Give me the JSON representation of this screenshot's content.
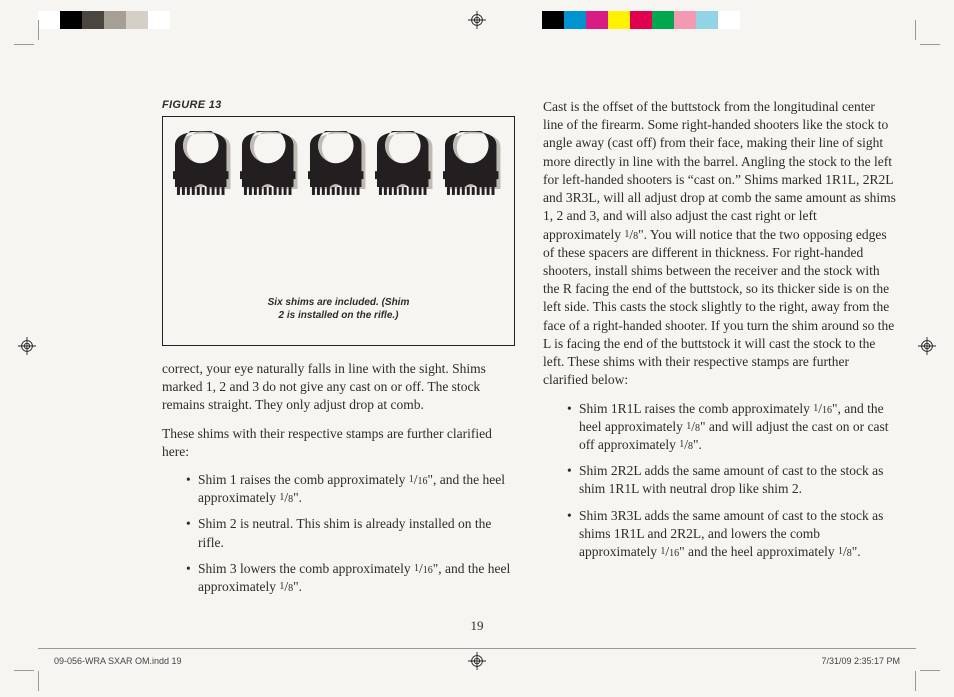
{
  "printmarks": {
    "left_swatches": [
      "#ffffff",
      "#000000",
      "#4b4540",
      "#a59f96",
      "#d4cfc7",
      "#ffffff"
    ],
    "right_swatches": [
      "#000000",
      "#0093d0",
      "#d91b84",
      "#fff200",
      "#e0004d",
      "#00a74f",
      "#f39ab2",
      "#92d3e6",
      "#ffffff"
    ],
    "reg_color": "#222222"
  },
  "figure": {
    "label": "FIGURE 13",
    "caption_line1": "Six shims are included. (Shim",
    "caption_line2": "2 is installed on the rifle.)",
    "shim_fill": "#231f20",
    "shim_shadow": "#bfbbb4",
    "count": 5
  },
  "left_column": {
    "p1": "correct, your eye naturally falls in line with the sight. Shims marked 1, 2 and 3 do not give any cast on or off. The stock remains straight. They only adjust drop at comb.",
    "p2": "These shims with their respective stamps are further clarified here:",
    "bullets": [
      "Shim 1 raises the comb approximately 1/16\", and the heel approximately 1/8\".",
      "Shim 2 is neutral. This shim is already installed on the rifle.",
      "Shim 3 lowers the comb approximately 1/16\", and the heel approximately 1/8\"."
    ]
  },
  "right_column": {
    "p1": "Cast is the offset of the buttstock from the longitudinal center line of the firearm. Some right-handed shooters like the stock to angle away (cast off) from their face, making their line of sight more directly in line with the barrel. Angling the stock to the left for left-handed shooters is “cast on.” Shims marked 1R1L, 2R2L and 3R3L, will all adjust drop at comb the same amount as shims 1, 2 and 3, and will also adjust the cast right or left approximately 1/8\". You will notice that the two opposing edges of these spacers are different in thickness. For right-handed shooters, install shims between the receiver and the stock with the R facing the end of the buttstock, so its thicker side is on the left side. This casts the stock slightly to the right, away from the face of a right-handed shooter. If you turn the shim around so the L is facing the end of the buttstock it will cast the stock to the left. These shims with their respective stamps are further clarified below:",
    "bullets": [
      "Shim 1R1L raises the comb approximately 1/16\", and the heel approximately 1/8\" and will adjust the cast on or cast off approximately 1/8\".",
      "Shim 2R2L adds the same amount of cast to the stock as shim 1R1L with neutral drop like shim 2.",
      "Shim 3R3L adds the same amount of cast to the stock as shims 1R1L and 2R2L, and lowers the comb approximately 1/16\" and the heel approximately 1/8\"."
    ]
  },
  "page_number": "19",
  "slug": {
    "left": "09-056-WRA SXAR OM.indd   19",
    "right": "7/31/09   2:35:17 PM"
  },
  "typography": {
    "body_font": "Adobe Caslon / Georgia serif",
    "body_size_pt": 10,
    "figure_label_font": "Helvetica bold italic",
    "background": "#f7f5f1",
    "text_color": "#2e2c29"
  }
}
